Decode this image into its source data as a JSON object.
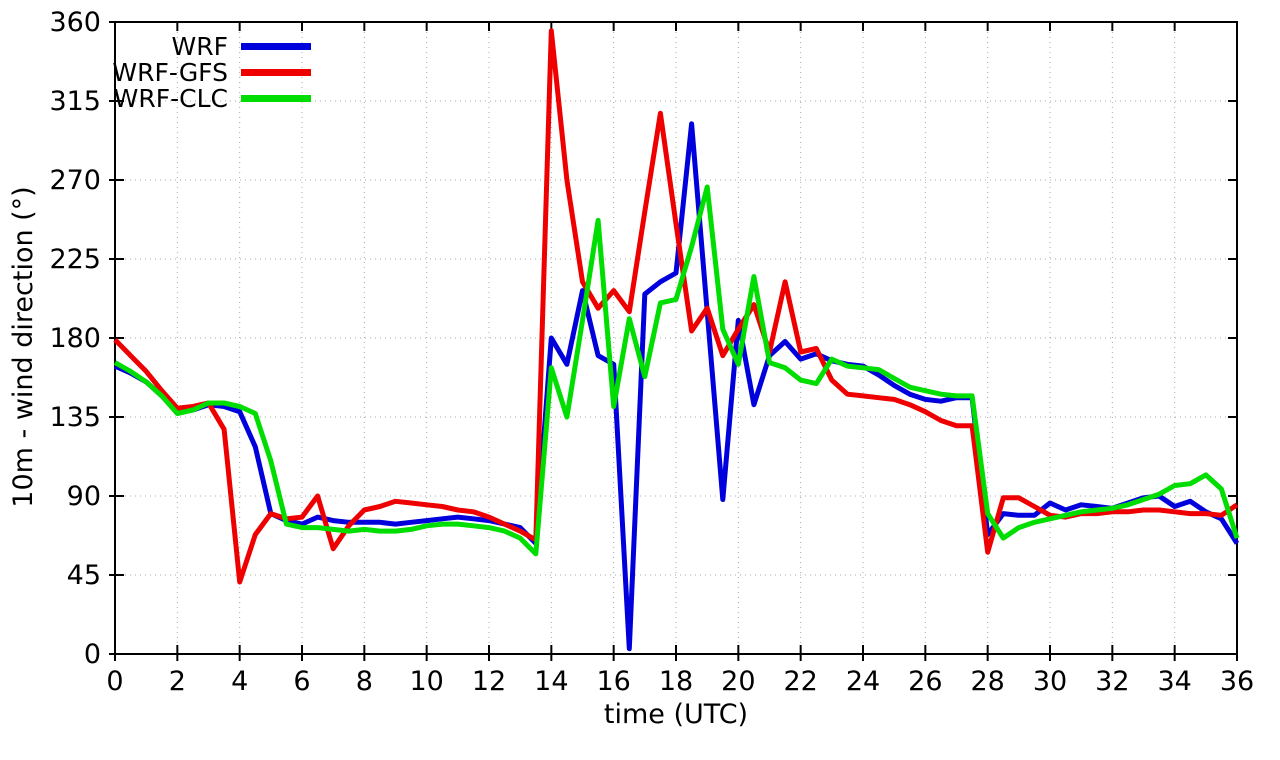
{
  "page": {
    "background": "#ffffff"
  },
  "chart_data": {
    "type": "line",
    "title": "",
    "xlabel": "time (UTC)",
    "ylabel": "10m - wind direction (°)",
    "xlim": [
      0,
      36
    ],
    "ylim": [
      0,
      360
    ],
    "x_ticks": [
      0,
      2,
      4,
      6,
      8,
      10,
      12,
      14,
      16,
      18,
      20,
      22,
      24,
      26,
      28,
      30,
      32,
      34,
      36
    ],
    "y_ticks": [
      0,
      45,
      90,
      135,
      180,
      225,
      270,
      315,
      360
    ],
    "grid": true,
    "grid_style": "dotted",
    "legend_position": "top-left-inside",
    "axis_color": "#000000",
    "grid_color": "#a8a8a8",
    "x": [
      0,
      0.5,
      1,
      1.5,
      2,
      2.5,
      3,
      3.5,
      4,
      4.5,
      5,
      5.5,
      6,
      6.5,
      7,
      7.5,
      8,
      8.5,
      9,
      9.5,
      10,
      10.5,
      11,
      11.5,
      12,
      12.5,
      13,
      13.5,
      14,
      14.5,
      15,
      15.5,
      16,
      16.5,
      17,
      17.5,
      18,
      18.5,
      19,
      19.5,
      20,
      20.5,
      21,
      21.5,
      22,
      22.5,
      23,
      23.5,
      24,
      24.5,
      25,
      25.5,
      26,
      26.5,
      27,
      27.5,
      28,
      28.5,
      29,
      29.5,
      30,
      30.5,
      31,
      31.5,
      32,
      32.5,
      33,
      33.5,
      34,
      34.5,
      35,
      35.5,
      36
    ],
    "series": [
      {
        "name": "WRF",
        "color": "#0000dd",
        "values": [
          164,
          160,
          155,
          147,
          138,
          139,
          142,
          141,
          138,
          118,
          80,
          76,
          74,
          78,
          76,
          75,
          75,
          75,
          74,
          75,
          76,
          77,
          78,
          77,
          76,
          74,
          72,
          63,
          180,
          165,
          207,
          170,
          165,
          3,
          205,
          212,
          217,
          302,
          195,
          88,
          190,
          142,
          170,
          178,
          168,
          171,
          167,
          165,
          164,
          159,
          153,
          148,
          145,
          144,
          146,
          146,
          68,
          80,
          79,
          79,
          86,
          82,
          85,
          84,
          83,
          86,
          89,
          90,
          84,
          87,
          81,
          77,
          63
        ]
      },
      {
        "name": "WRF-GFS",
        "color": "#ee0000",
        "values": [
          179,
          170,
          161,
          150,
          140,
          141,
          143,
          128,
          41,
          68,
          80,
          77,
          78,
          90,
          60,
          73,
          82,
          84,
          87,
          86,
          85,
          84,
          82,
          81,
          78,
          74,
          70,
          65,
          355,
          270,
          212,
          197,
          207,
          195,
          252,
          308,
          245,
          184,
          197,
          170,
          185,
          199,
          172,
          212,
          172,
          174,
          156,
          148,
          147,
          146,
          145,
          142,
          138,
          133,
          130,
          130,
          58,
          89,
          89,
          84,
          79,
          78,
          80,
          80,
          81,
          81,
          82,
          82,
          81,
          80,
          80,
          79,
          85
        ]
      },
      {
        "name": "WRF-CLC",
        "color": "#00dd00",
        "values": [
          166,
          161,
          155,
          147,
          137,
          139,
          143,
          143,
          141,
          137,
          110,
          74,
          72,
          72,
          71,
          70,
          71,
          70,
          70,
          71,
          73,
          74,
          74,
          73,
          72,
          70,
          66,
          57,
          163,
          135,
          190,
          247,
          141,
          191,
          158,
          200,
          202,
          232,
          266,
          185,
          165,
          215,
          166,
          163,
          156,
          154,
          168,
          164,
          163,
          162,
          157,
          152,
          150,
          148,
          147,
          147,
          80,
          66,
          72,
          75,
          77,
          79,
          81,
          82,
          83,
          85,
          88,
          91,
          96,
          97,
          102,
          94,
          66
        ]
      }
    ]
  }
}
